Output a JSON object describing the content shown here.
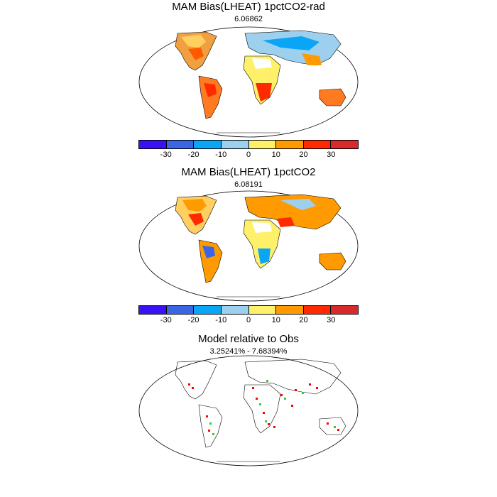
{
  "panels": [
    {
      "title": "MAM Bias(LHEAT) 1pctCO2-rad",
      "subtitle": "6.06862",
      "colorbar": {
        "colors": [
          "#3a10f5",
          "#3a66e6",
          "#0aa6f5",
          "#9cd0ee",
          "#fff06a",
          "#ff9a00",
          "#ff2a00",
          "#d82a2a"
        ],
        "labels": [
          "-30",
          "-20",
          "-10",
          "0",
          "10",
          "20",
          "30"
        ]
      }
    },
    {
      "title": "MAM Bias(LHEAT) 1pctCO2",
      "subtitle": "6.08191",
      "colorbar": {
        "colors": [
          "#3a10f5",
          "#3a66e6",
          "#0aa6f5",
          "#9cd0ee",
          "#fff06a",
          "#ff9a00",
          "#ff2a00",
          "#d82a2a"
        ],
        "labels": [
          "-30",
          "-20",
          "-10",
          "0",
          "10",
          "20",
          "30"
        ]
      }
    },
    {
      "title": "Model relative to Obs",
      "subtitle": "3.25241% - 7.68394%",
      "marker_colors": [
        "#ff0000",
        "#33cc33"
      ]
    }
  ]
}
